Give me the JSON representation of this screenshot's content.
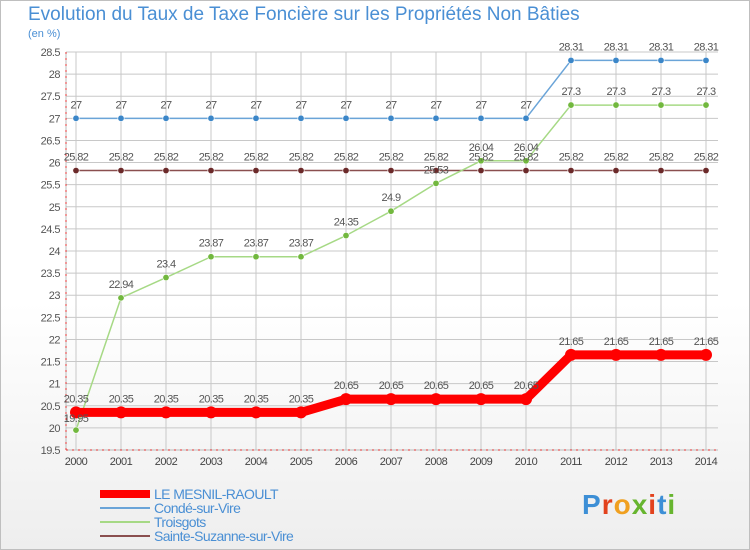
{
  "header": {
    "title": "Evolution du Taux de Taxe Foncière sur les Propriétés Non Bâties",
    "unit": "(en %)"
  },
  "logo": {
    "text": "Proxiti",
    "colors": [
      "#3d8fd6",
      "#e2421d",
      "#f0a020",
      "#67b52f",
      "#e2421d",
      "#3d8fd6",
      "#67b52f"
    ]
  },
  "colors": {
    "title": "#4a8fd4",
    "grid": "#c8c8c8",
    "zeroAxis": "#e03030"
  },
  "chart_data": {
    "type": "line",
    "title": "Evolution du Taux de Taxe Foncière sur les Propriétés Non Bâties",
    "ylabel": "(en %)",
    "xlabel": "",
    "ylim": [
      19.5,
      28.5
    ],
    "yticks": [
      "19.5",
      "20",
      "20.5",
      "21",
      "21.5",
      "22",
      "22.5",
      "23",
      "23.5",
      "24",
      "24.5",
      "25",
      "25.5",
      "26",
      "26.5",
      "27",
      "27.5",
      "28",
      "28.5"
    ],
    "categories": [
      "2000",
      "2001",
      "2002",
      "2003",
      "2004",
      "2005",
      "2006",
      "2007",
      "2008",
      "2009",
      "2010",
      "2011",
      "2012",
      "2013",
      "2014"
    ],
    "grid": true,
    "legend_position": "bottom-left",
    "series": [
      {
        "name": "LE MESNIL-RAOULT",
        "color": "#ff0000",
        "marker": "#ff0000",
        "width": 9,
        "values": [
          20.35,
          20.35,
          20.35,
          20.35,
          20.35,
          20.35,
          20.65,
          20.65,
          20.65,
          20.65,
          20.65,
          21.65,
          21.65,
          21.65,
          21.65
        ],
        "labels": [
          "20.35",
          "20.35",
          "20.35",
          "20.35",
          "20.35",
          "20.35",
          "20.65",
          "20.65",
          "20.65",
          "20.65",
          "20.65",
          "21.65",
          "21.65",
          "21.65",
          "21.65"
        ]
      },
      {
        "name": "Condé-sur-Vire",
        "color": "#6aa4d8",
        "marker": "#3b86c8",
        "width": 1.5,
        "values": [
          27,
          27,
          27,
          27,
          27,
          27,
          27,
          27,
          27,
          27,
          27,
          28.31,
          28.31,
          28.31,
          28.31
        ],
        "labels": [
          "27",
          "27",
          "27",
          "27",
          "27",
          "27",
          "27",
          "27",
          "27",
          "27",
          "27",
          "28.31",
          "28.31",
          "28.31",
          "28.31"
        ]
      },
      {
        "name": "Troisgots",
        "color": "#a6d985",
        "marker": "#72b83e",
        "width": 1.5,
        "values": [
          19.95,
          22.94,
          23.4,
          23.87,
          23.87,
          23.87,
          24.35,
          24.9,
          25.53,
          26.04,
          26.04,
          27.3,
          27.3,
          27.3,
          27.3
        ],
        "labels": [
          "19.95",
          "22.94",
          "23.4",
          "23.87",
          "23.87",
          "23.87",
          "24.35",
          "24.9",
          "25.53",
          "26.04",
          "26.04",
          "27.3",
          "27.3",
          "27.3",
          "27.3"
        ]
      },
      {
        "name": "Sainte-Suzanne-sur-Vire",
        "color": "#8a4f4f",
        "marker": "#6b2a2a",
        "width": 1.5,
        "values": [
          25.82,
          25.82,
          25.82,
          25.82,
          25.82,
          25.82,
          25.82,
          25.82,
          25.82,
          25.82,
          25.82,
          25.82,
          25.82,
          25.82,
          25.82
        ],
        "labels": [
          "25.82",
          "25.82",
          "25.82",
          "25.82",
          "25.82",
          "25.82",
          "25.82",
          "25.82",
          "25.82",
          "25.82",
          "25.82",
          "25.82",
          "25.82",
          "25.82",
          "25.82"
        ]
      }
    ]
  }
}
